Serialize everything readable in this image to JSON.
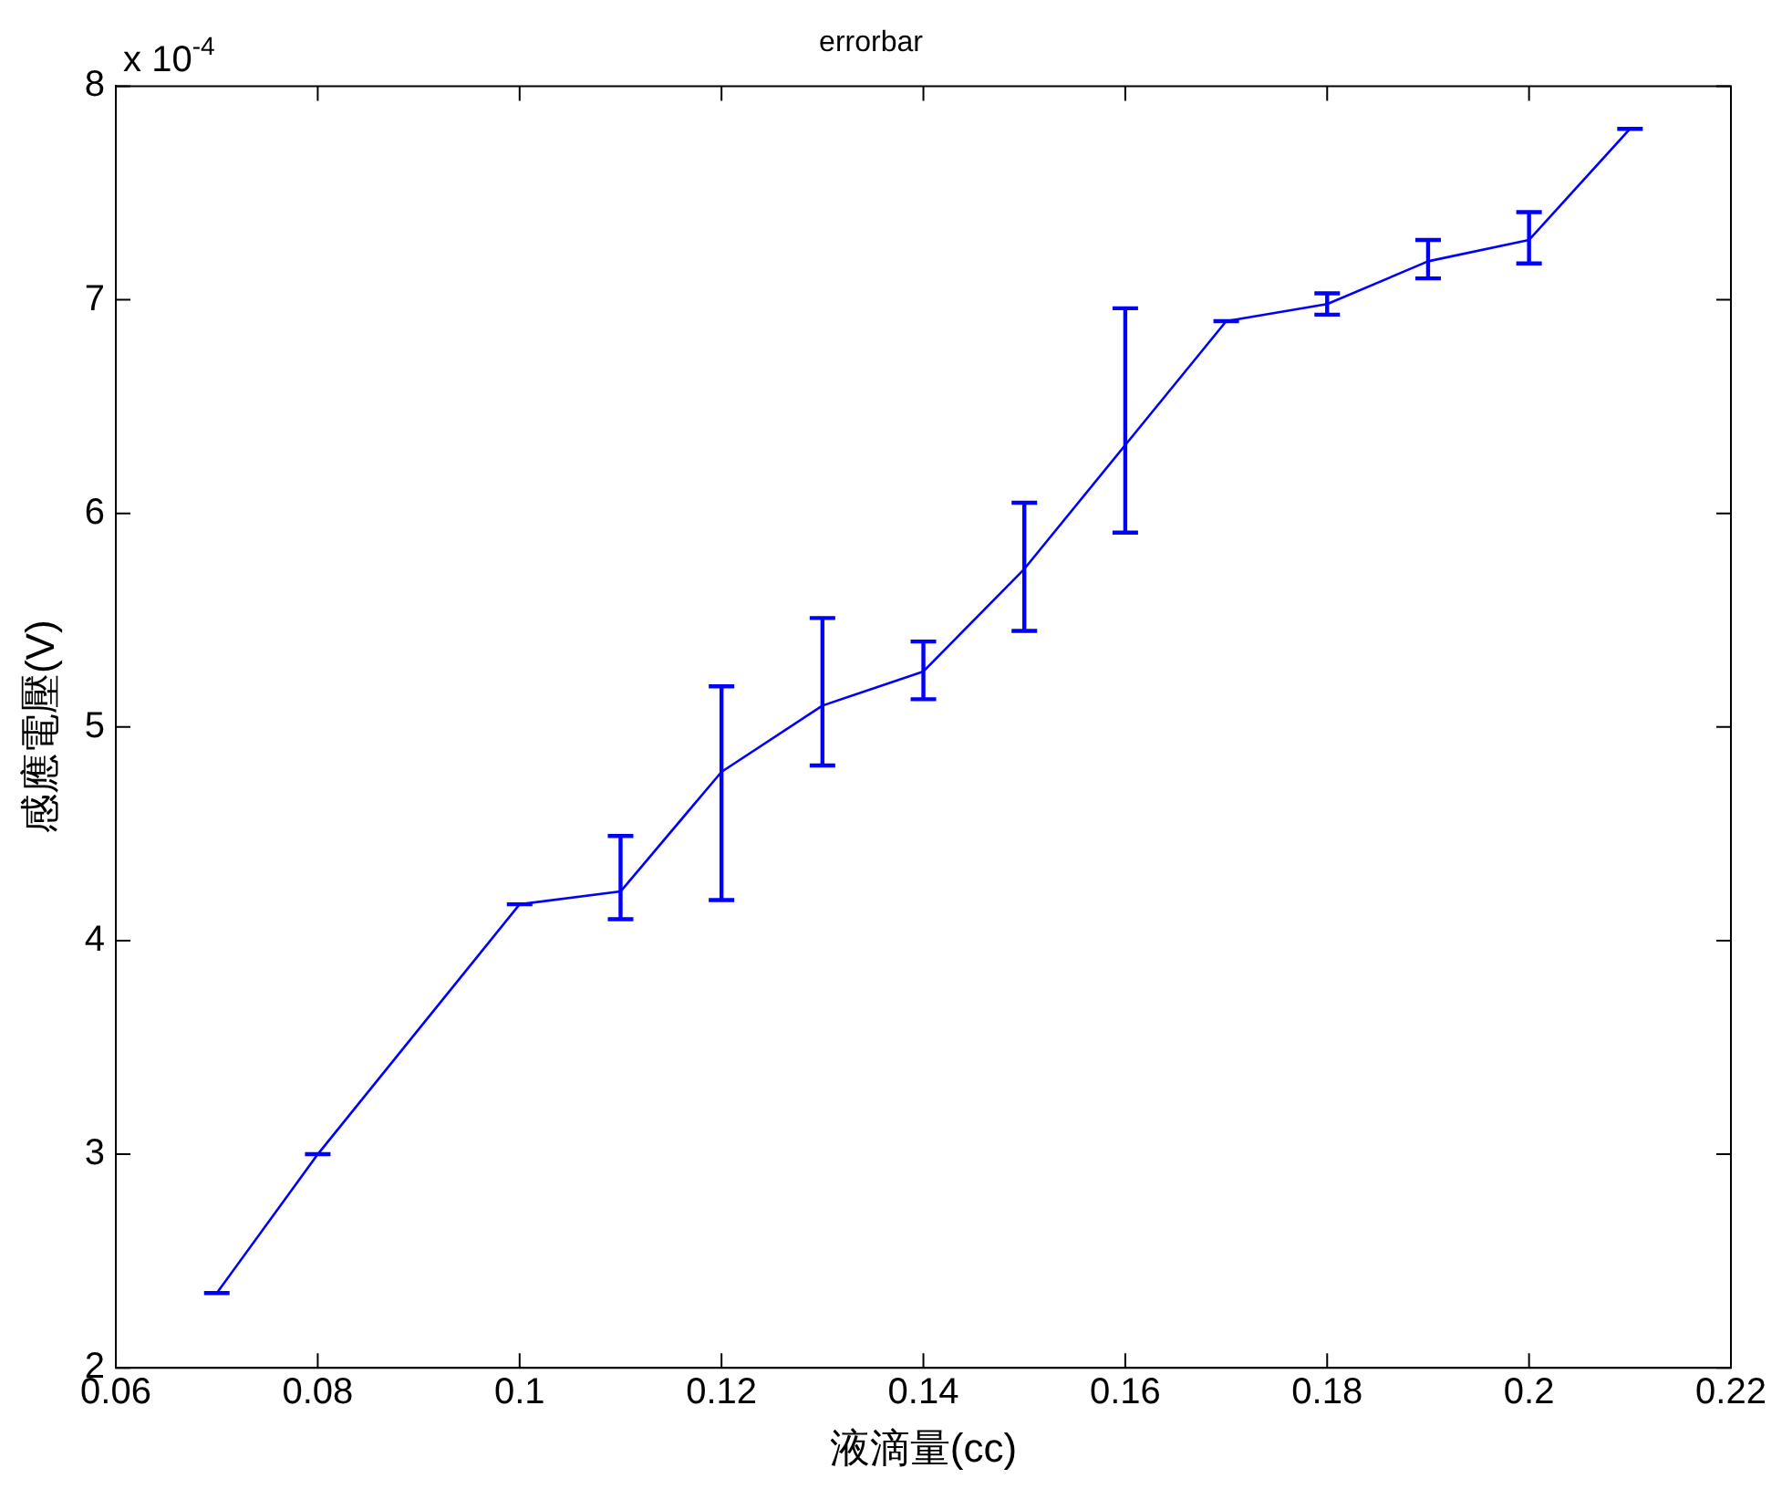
{
  "chart_data": {
    "type": "line",
    "title": "errorbar",
    "xlabel": "液滴量(cc)",
    "ylabel": "感應電壓(V)",
    "annotations": [
      "x 10$^{-4}$"
    ],
    "x": [
      0.07,
      0.08,
      0.1,
      0.11,
      0.12,
      0.13,
      0.14,
      0.15,
      0.16,
      0.17,
      0.18,
      0.19,
      0.2,
      0.21
    ],
    "series": [
      {
        "color": "#0000ff",
        "values": [
          2.35,
          3.0,
          4.17,
          4.23,
          4.79,
          5.1,
          5.26,
          5.74,
          6.32,
          6.9,
          6.98,
          7.18,
          7.28,
          7.8
        ],
        "errors": [
          0,
          0,
          0,
          [
            4.1,
            4.49
          ],
          [
            4.19,
            5.19
          ],
          [
            4.82,
            5.51
          ],
          [
            5.13,
            5.4
          ],
          [
            5.45,
            6.05
          ],
          [
            5.91,
            6.96
          ],
          0,
          [
            6.93,
            7.03
          ],
          [
            7.1,
            7.28
          ],
          [
            7.17,
            7.41
          ],
          0
        ]
      }
    ],
    "xlim": [
      0.06,
      0.22
    ],
    "xticks": [
      0.06,
      0.08,
      0.1,
      0.12,
      0.14,
      0.16,
      0.18,
      0.2,
      0.22
    ],
    "ylim": [
      2,
      8
    ],
    "yticks": [
      2,
      3,
      4,
      5,
      6,
      7,
      8
    ],
    "grid": false,
    "legend": false,
    "marker": "none",
    "line_style": "solid"
  }
}
